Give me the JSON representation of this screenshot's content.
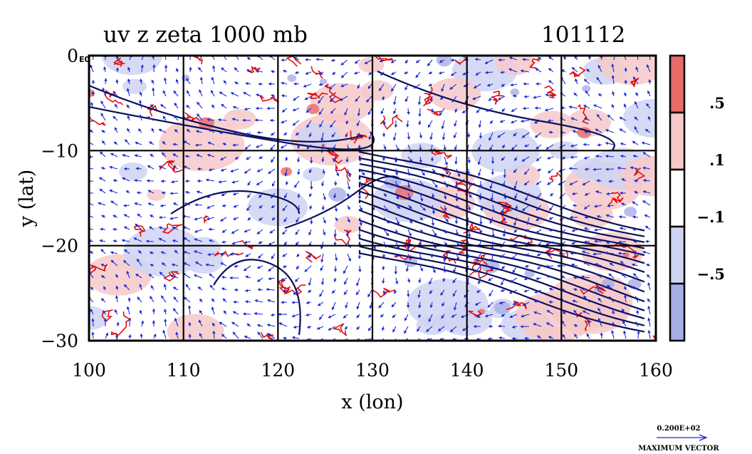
{
  "chart_data": {
    "type": "heatmap",
    "title": "uv z zeta 1000 mb",
    "title_right": "101112",
    "xlabel": "x (lon)",
    "ylabel": "y (lat)",
    "xlim": [
      100,
      160
    ],
    "ylim": [
      -30,
      0
    ],
    "x_ticks": [
      100,
      110,
      120,
      130,
      140,
      150,
      160
    ],
    "y_ticks": [
      0,
      -10,
      -20,
      -30
    ],
    "y_tick_labels": [
      "0",
      "−10",
      "−20",
      "−30"
    ],
    "grid": true,
    "corner_label": "E0",
    "colorbar": {
      "placement": "right",
      "labels": [
        ".5",
        ".1",
        "−.1",
        "−.5"
      ],
      "colors": [
        "#e86a6a",
        "#f6c9c9",
        "#ffffff",
        "#cfd4f2",
        "#a7aee6"
      ]
    },
    "layers": [
      "vorticity (zeta) shading",
      "geopotential height contours",
      "wind vectors"
    ],
    "vector_legend": {
      "value": "0.200E+02",
      "label": "MAXIMUM VECTOR"
    }
  }
}
